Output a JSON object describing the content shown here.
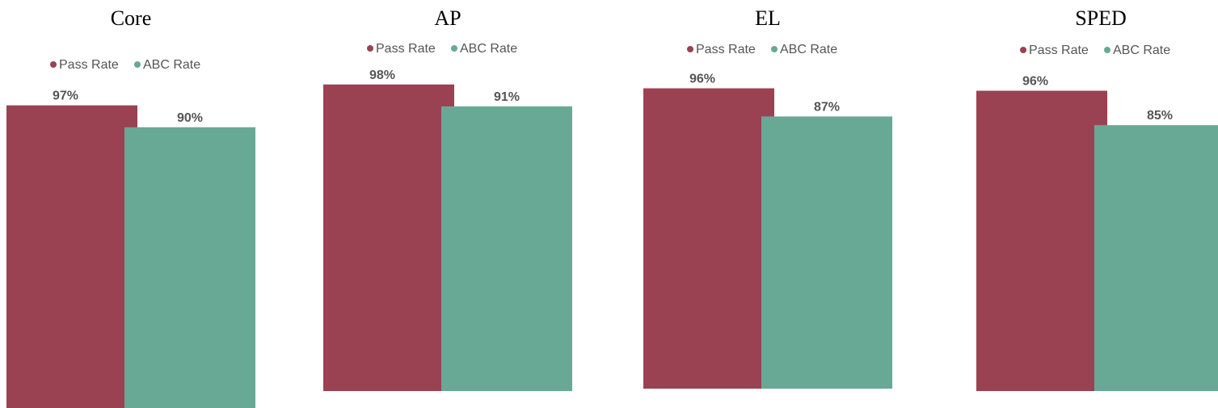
{
  "chart_data": [
    {
      "type": "bar",
      "title": "Core",
      "ylim": [
        0,
        100
      ],
      "series": [
        {
          "name": "Pass Rate",
          "color": "#9a4252",
          "values": [
            97
          ],
          "value_labels": [
            "97%"
          ]
        },
        {
          "name": "ABC Rate",
          "color": "#68a996",
          "values": [
            90
          ],
          "value_labels": [
            "90%"
          ]
        }
      ]
    },
    {
      "type": "bar",
      "title": "AP",
      "ylim": [
        0,
        100
      ],
      "series": [
        {
          "name": "Pass Rate",
          "color": "#9a4252",
          "values": [
            98
          ],
          "value_labels": [
            "98%"
          ]
        },
        {
          "name": "ABC Rate",
          "color": "#68a996",
          "values": [
            91
          ],
          "value_labels": [
            "91%"
          ]
        }
      ]
    },
    {
      "type": "bar",
      "title": "EL",
      "ylim": [
        0,
        100
      ],
      "series": [
        {
          "name": "Pass Rate",
          "color": "#9a4252",
          "values": [
            96
          ],
          "value_labels": [
            "96%"
          ]
        },
        {
          "name": "ABC Rate",
          "color": "#68a996",
          "values": [
            87
          ],
          "value_labels": [
            "87%"
          ]
        }
      ]
    },
    {
      "type": "bar",
      "title": "SPED",
      "ylim": [
        0,
        100
      ],
      "series": [
        {
          "name": "Pass Rate",
          "color": "#9a4252",
          "values": [
            96
          ],
          "value_labels": [
            "96%"
          ]
        },
        {
          "name": "ABC Rate",
          "color": "#68a996",
          "values": [
            85
          ],
          "value_labels": [
            "85%"
          ]
        }
      ]
    }
  ]
}
